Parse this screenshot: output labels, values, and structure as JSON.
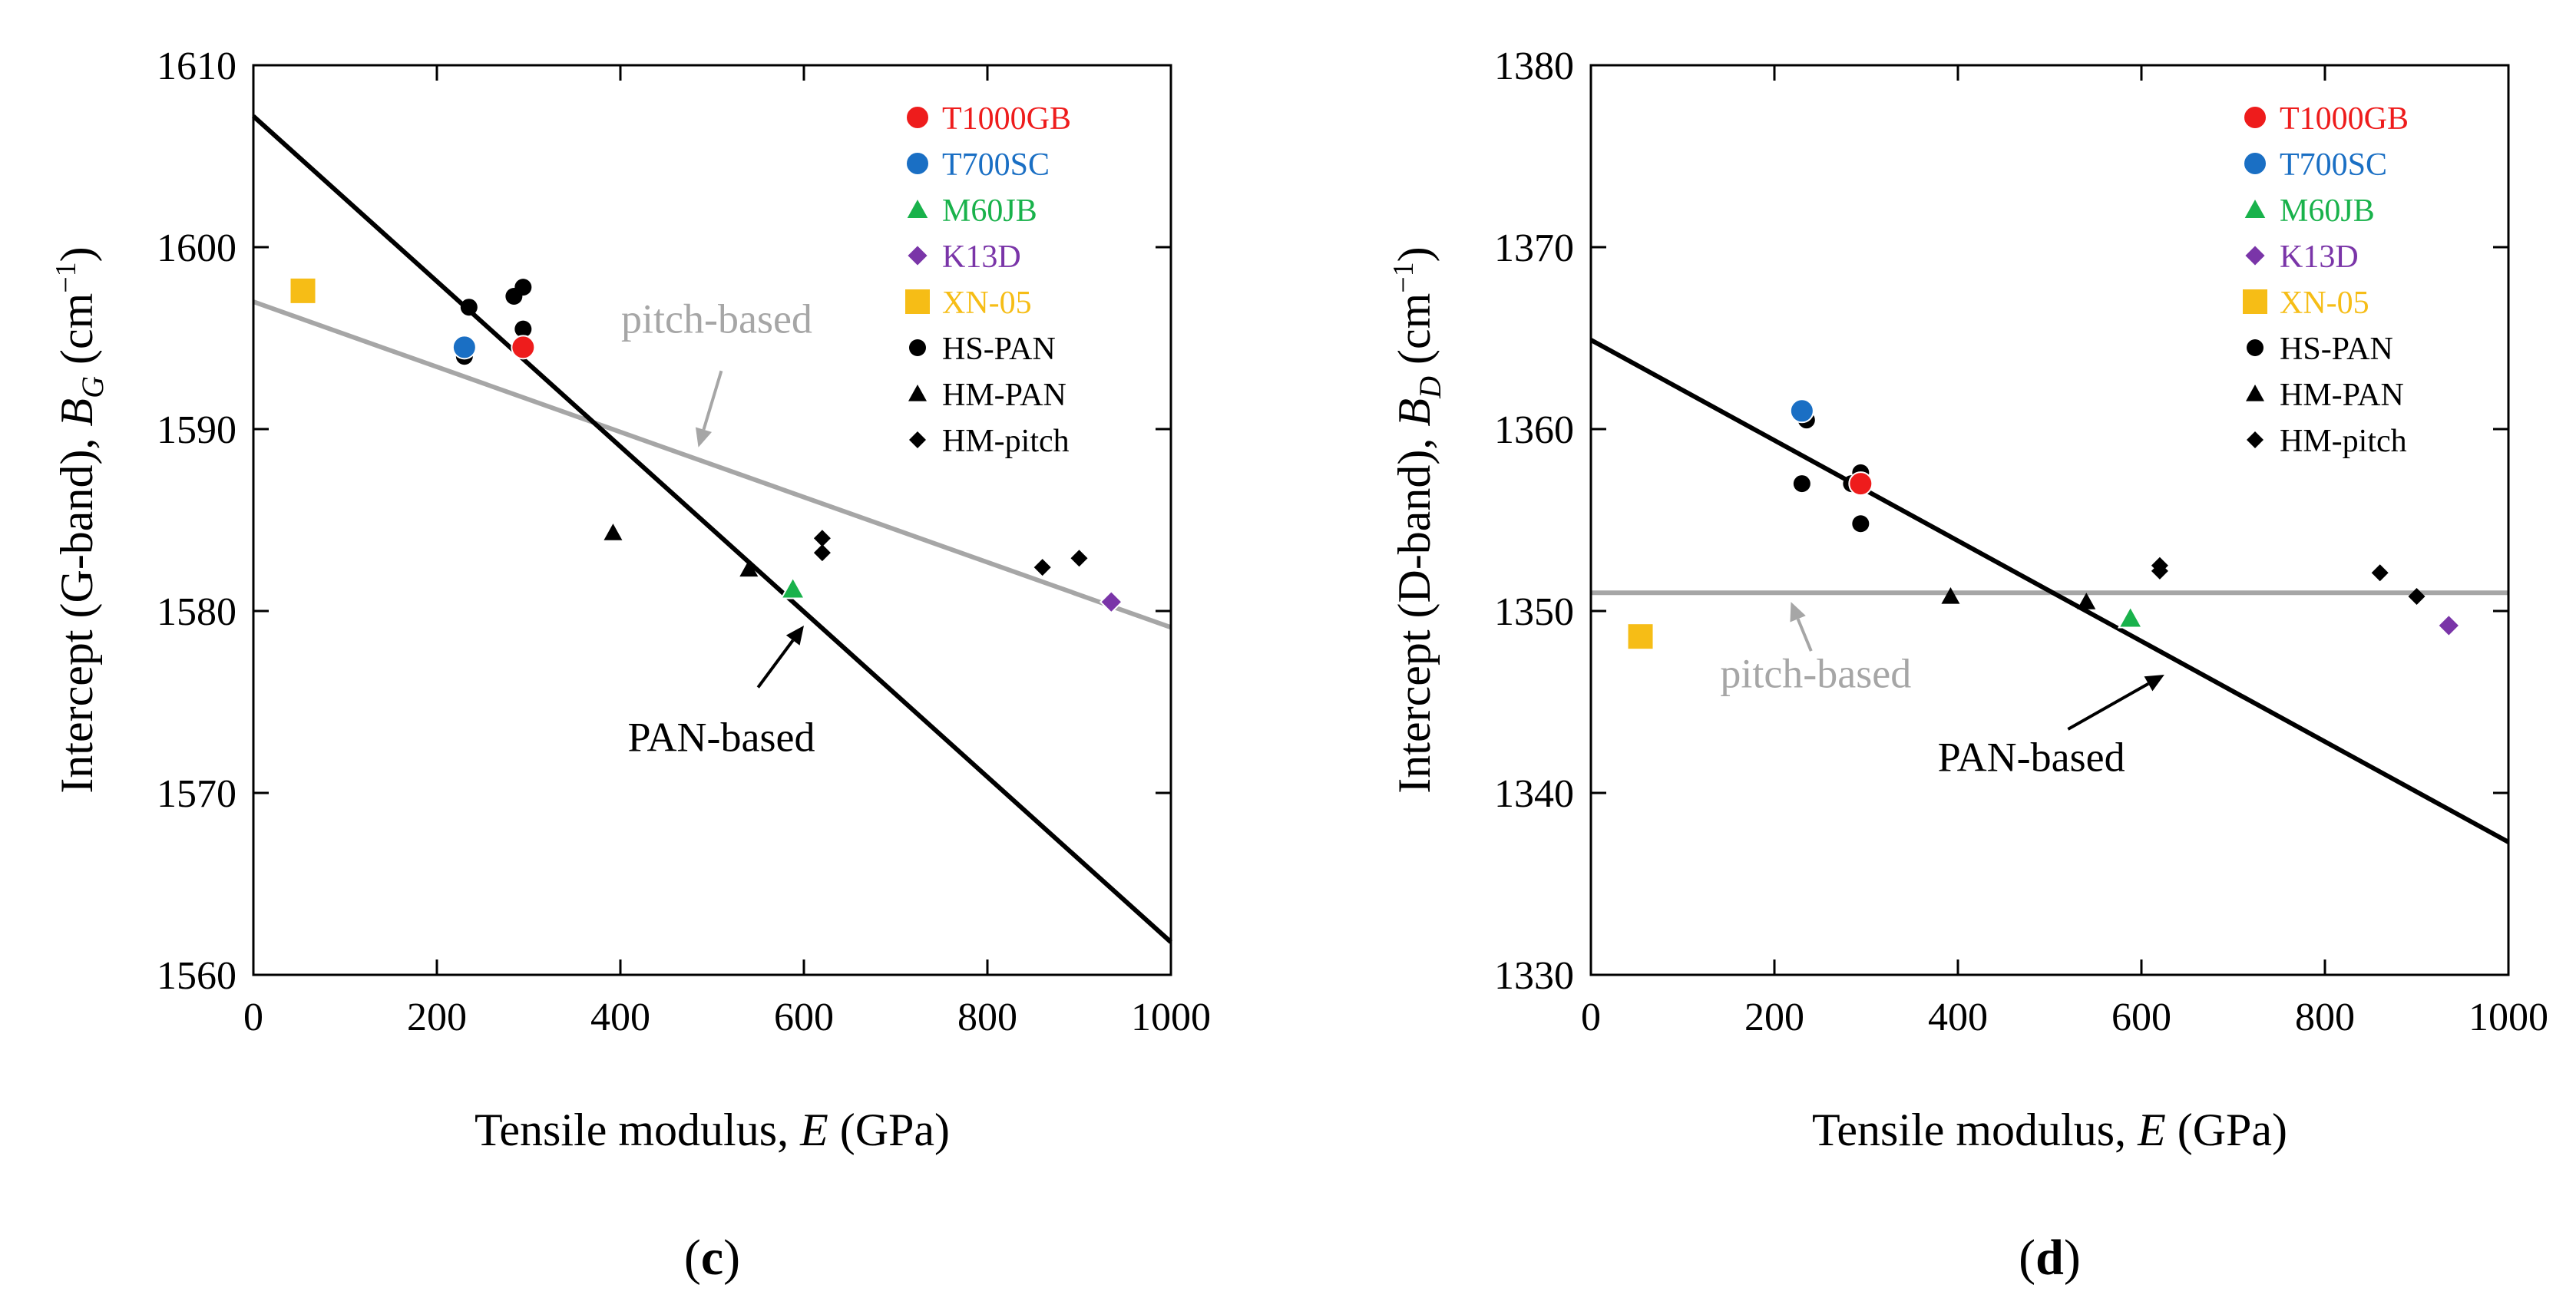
{
  "chart_data": [
    {
      "type": "scatter",
      "panel_label": "c",
      "title": "",
      "xlabel": "Tensile modulus, E (GPa)",
      "ylabel": "Intercept (G-band), B_G (cm⁻¹)",
      "xlabel_parts": {
        "pre": "Tensile modulus, ",
        "var": "E",
        "post": " (GPa)"
      },
      "ylabel_parts": {
        "pre": "Intercept (G-band), ",
        "var": "B",
        "sub": "G",
        "post": " (cm",
        "sup": "−1",
        "close": ")"
      },
      "xlim": [
        0,
        1000
      ],
      "ylim": [
        1560,
        1610
      ],
      "xticks": [
        "0",
        "200",
        "400",
        "600",
        "800",
        "1000"
      ],
      "yticks": [
        "1560",
        "1570",
        "1580",
        "1590",
        "1600",
        "1610"
      ],
      "grid": false,
      "legend_position": "top-right",
      "series": [
        {
          "name": "T1000GB",
          "marker": "circle",
          "color": "#ee1c1c",
          "points": [
            [
              294,
              1594.5
            ]
          ]
        },
        {
          "name": "T700SC",
          "marker": "circle",
          "color": "#1a6fc4",
          "points": [
            [
              230,
              1594.5
            ]
          ]
        },
        {
          "name": "M60JB",
          "marker": "triangle",
          "color": "#19b24b",
          "points": [
            [
              588,
              1581.2
            ]
          ]
        },
        {
          "name": "K13D",
          "marker": "diamond",
          "color": "#7a35a8",
          "points": [
            [
              935,
              1580.5
            ]
          ]
        },
        {
          "name": "XN-05",
          "marker": "square",
          "color": "#f6bd16",
          "points": [
            [
              54,
              1597.6
            ]
          ]
        },
        {
          "name": "HS-PAN",
          "marker": "circle",
          "color": "#000000",
          "points": [
            [
              230,
              1594.0
            ],
            [
              235,
              1596.7
            ],
            [
              284,
              1597.3
            ],
            [
              294,
              1597.8
            ],
            [
              294,
              1595.5
            ],
            [
              294,
              1594.5
            ]
          ]
        },
        {
          "name": "HM-PAN",
          "marker": "triangle",
          "color": "#000000",
          "points": [
            [
              392,
              1584.3
            ],
            [
              540,
              1582.3
            ]
          ]
        },
        {
          "name": "HM-pitch",
          "marker": "diamond",
          "color": "#000000",
          "points": [
            [
              620,
              1584.0
            ],
            [
              620,
              1583.2
            ],
            [
              860,
              1582.4
            ],
            [
              900,
              1582.9
            ]
          ]
        }
      ],
      "fit_lines": [
        {
          "name": "pitch-based",
          "color": "#a6a6a6",
          "points": [
            [
              0,
              1597.0
            ],
            [
              1000,
              1579.1
            ]
          ]
        },
        {
          "name": "PAN-based",
          "color": "#000000",
          "points": [
            [
              0,
              1607.2
            ],
            [
              1000,
              1561.8
            ]
          ]
        }
      ],
      "annotations": [
        {
          "text": "pitch-based",
          "color": "#a6a6a6",
          "text_at": [
            505,
            1595.3
          ],
          "arrow_from": [
            510,
            1593.2
          ],
          "arrow_to": [
            485,
            1589.0
          ]
        },
        {
          "text": "PAN-based",
          "color": "#000000",
          "text_at": [
            510,
            1572.3
          ],
          "arrow_from": [
            550,
            1575.8
          ],
          "arrow_to": [
            600,
            1579.2
          ]
        }
      ]
    },
    {
      "type": "scatter",
      "panel_label": "d",
      "title": "",
      "xlabel": "Tensile modulus, E (GPa)",
      "ylabel": "Intercept (D-band), B_D (cm⁻¹)",
      "xlabel_parts": {
        "pre": "Tensile modulus, ",
        "var": "E",
        "post": " (GPa)"
      },
      "ylabel_parts": {
        "pre": "Intercept (D-band), ",
        "var": "B",
        "sub": "D",
        "post": " (cm",
        "sup": "−1",
        "close": ")"
      },
      "xlim": [
        0,
        1000
      ],
      "ylim": [
        1330,
        1380
      ],
      "xticks": [
        "0",
        "200",
        "400",
        "600",
        "800",
        "1000"
      ],
      "yticks": [
        "1330",
        "1340",
        "1350",
        "1360",
        "1370",
        "1380"
      ],
      "grid": false,
      "legend_position": "top-right",
      "series": [
        {
          "name": "T1000GB",
          "marker": "circle",
          "color": "#ee1c1c",
          "points": [
            [
              294,
              1357.0
            ]
          ]
        },
        {
          "name": "T700SC",
          "marker": "circle",
          "color": "#1a6fc4",
          "points": [
            [
              230,
              1361.0
            ]
          ]
        },
        {
          "name": "M60JB",
          "marker": "triangle",
          "color": "#19b24b",
          "points": [
            [
              588,
              1349.6
            ]
          ]
        },
        {
          "name": "K13D",
          "marker": "diamond",
          "color": "#7a35a8",
          "points": [
            [
              935,
              1349.2
            ]
          ]
        },
        {
          "name": "XN-05",
          "marker": "square",
          "color": "#f6bd16",
          "points": [
            [
              54,
              1348.6
            ]
          ]
        },
        {
          "name": "HS-PAN",
          "marker": "circle",
          "color": "#000000",
          "points": [
            [
              230,
              1357.0
            ],
            [
              235,
              1360.5
            ],
            [
              284,
              1357.0
            ],
            [
              294,
              1357.6
            ],
            [
              294,
              1354.8
            ],
            [
              294,
              1357.0
            ]
          ]
        },
        {
          "name": "HM-PAN",
          "marker": "triangle",
          "color": "#000000",
          "points": [
            [
              392,
              1350.8
            ],
            [
              540,
              1350.5
            ]
          ]
        },
        {
          "name": "HM-pitch",
          "marker": "diamond",
          "color": "#000000",
          "points": [
            [
              620,
              1352.5
            ],
            [
              620,
              1352.2
            ],
            [
              860,
              1352.1
            ],
            [
              900,
              1350.8
            ]
          ]
        }
      ],
      "fit_lines": [
        {
          "name": "pitch-based",
          "color": "#a6a6a6",
          "points": [
            [
              0,
              1351.0
            ],
            [
              1000,
              1351.0
            ]
          ]
        },
        {
          "name": "PAN-based",
          "color": "#000000",
          "points": [
            [
              0,
              1364.9
            ],
            [
              1000,
              1337.3
            ]
          ]
        }
      ],
      "annotations": [
        {
          "text": "pitch-based",
          "color": "#a6a6a6",
          "text_at": [
            245,
            1345.8
          ],
          "arrow_from": [
            240,
            1347.8
          ],
          "arrow_to": [
            218,
            1350.5
          ]
        },
        {
          "text": "PAN-based",
          "color": "#000000",
          "text_at": [
            480,
            1341.2
          ],
          "arrow_from": [
            520,
            1343.5
          ],
          "arrow_to": [
            625,
            1346.5
          ]
        }
      ]
    }
  ]
}
